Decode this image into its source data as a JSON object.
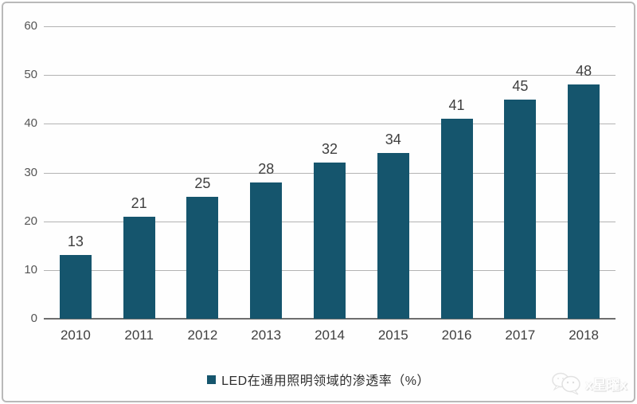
{
  "chart_data": {
    "type": "bar",
    "categories": [
      "2010",
      "2011",
      "2012",
      "2013",
      "2014",
      "2015",
      "2016",
      "2017",
      "2018"
    ],
    "values": [
      13,
      21,
      25,
      28,
      32,
      34,
      41,
      45,
      48
    ],
    "title": "",
    "xlabel": "",
    "ylabel": "",
    "ylim": [
      0,
      60
    ],
    "yticks": [
      0,
      10,
      20,
      30,
      40,
      50,
      60
    ],
    "grid": true,
    "bar_color": "#15556d",
    "legend_position": "bottom",
    "legend": "LED在通用照明领域的渗透率（%）"
  },
  "watermark": {
    "icon": "wechat-icon",
    "text": "x星曜x"
  }
}
